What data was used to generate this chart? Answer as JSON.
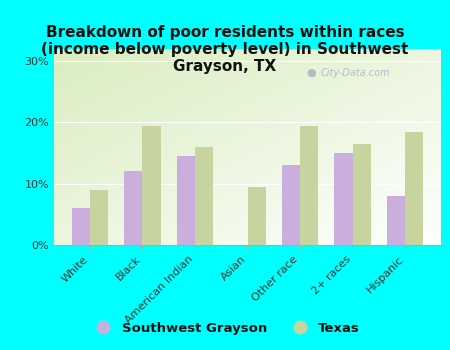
{
  "title": "Breakdown of poor residents within races\n(income below poverty level) in Southwest\nGrayson, TX",
  "categories": [
    "White",
    "Black",
    "American Indian",
    "Asian",
    "Other race",
    "2+ races",
    "Hispanic"
  ],
  "southwest_grayson": [
    6,
    12,
    14.5,
    0,
    13,
    15,
    8
  ],
  "texas": [
    9,
    19.5,
    16,
    9.5,
    19.5,
    16.5,
    18.5
  ],
  "bar_color_sg": "#c9aede",
  "bar_color_tx": "#c8d4a0",
  "background_color": "#00ffff",
  "yticks": [
    0,
    10,
    20,
    30
  ],
  "ylim": [
    0,
    32
  ],
  "legend_label_sg": "Southwest Grayson",
  "legend_label_tx": "Texas",
  "watermark": "City-Data.com",
  "title_fontsize": 11,
  "tick_fontsize": 8,
  "legend_fontsize": 9.5
}
